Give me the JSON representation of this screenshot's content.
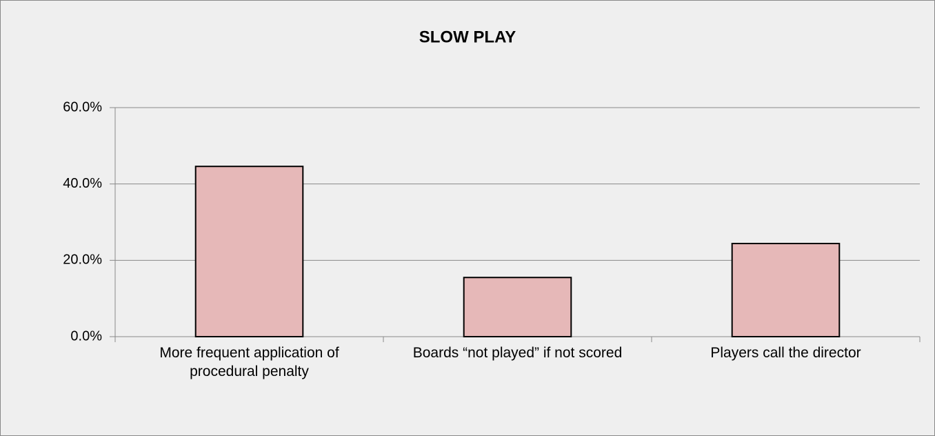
{
  "chart_data": {
    "type": "bar",
    "title": "SLOW PLAY",
    "categories": [
      "More frequent application of procedural penalty",
      "Boards “not played” if not scored",
      "Players call the director"
    ],
    "values": [
      44.6,
      15.5,
      24.4
    ],
    "color": "#e6b8b8",
    "ylim": [
      0,
      60
    ],
    "yticks": [
      {
        "value": 0,
        "label": "0.0%"
      },
      {
        "value": 20,
        "label": "20.0%"
      },
      {
        "value": 40,
        "label": "40.0%"
      },
      {
        "value": 60,
        "label": "60.0%"
      }
    ],
    "grid": true
  }
}
